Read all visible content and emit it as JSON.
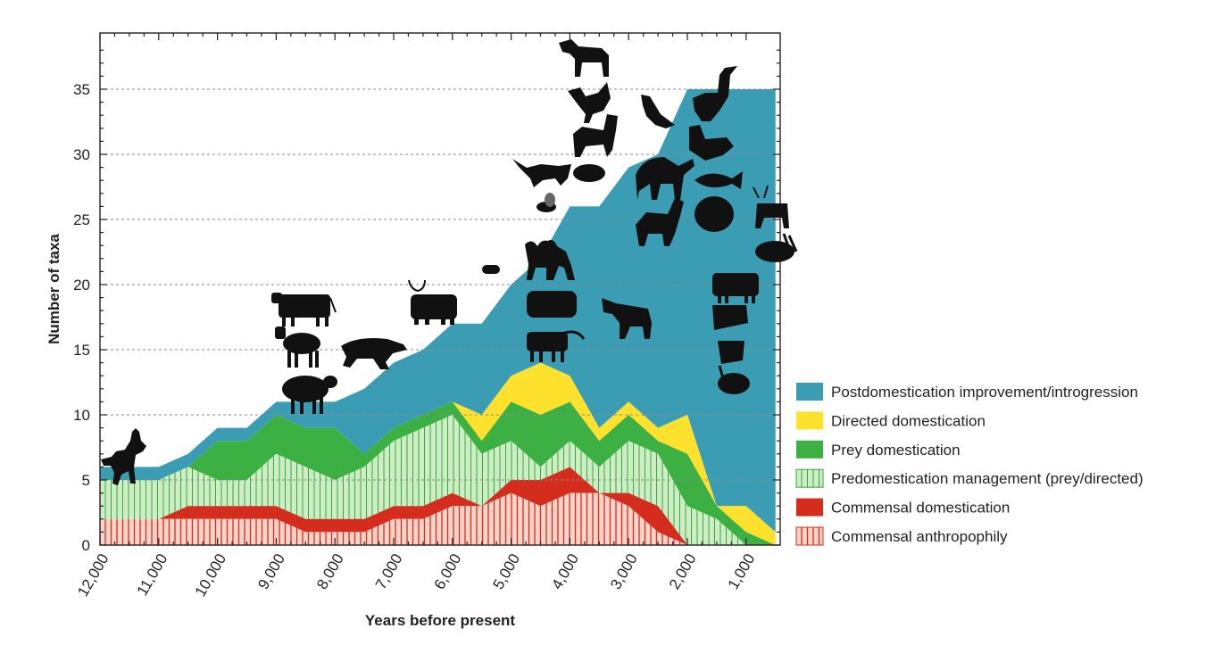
{
  "chart_data": {
    "type": "area",
    "title": "",
    "xlabel": "Years before present",
    "ylabel": "Number of taxa",
    "xlim": [
      12000,
      500
    ],
    "ylim": [
      0,
      39
    ],
    "x_ticks": [
      12000,
      11000,
      10000,
      9000,
      8000,
      7000,
      6000,
      5000,
      4000,
      3000,
      2000,
      1000
    ],
    "x_tick_labels": [
      "12,000",
      "11,000",
      "10,000",
      "9,000",
      "8,000",
      "7,000",
      "6,000",
      "5,000",
      "4,000",
      "3,000",
      "2,000",
      "1,000"
    ],
    "y_ticks": [
      0,
      5,
      10,
      15,
      20,
      25,
      30,
      35
    ],
    "y_tick_labels": [
      "0",
      "5",
      "10",
      "15",
      "20",
      "25",
      "30",
      "35"
    ],
    "grid": "horizontal dashed lines at y ticks",
    "legend_position": "bottom-right",
    "x": [
      12000,
      11500,
      11000,
      10500,
      10000,
      9500,
      9000,
      8500,
      8000,
      7500,
      7000,
      6500,
      6000,
      5500,
      5000,
      4500,
      4000,
      3500,
      3000,
      2500,
      2000,
      1500,
      1000,
      500
    ],
    "series": [
      {
        "name": "Commensal anthropophily",
        "color": "#f6c9be",
        "pattern": "vertical-stripes-red",
        "cumulative_top": [
          2,
          2,
          2,
          2,
          2,
          2,
          2,
          1,
          1,
          1,
          2,
          2,
          3,
          3,
          4,
          3,
          4,
          4,
          3,
          1,
          0,
          0,
          0,
          0
        ]
      },
      {
        "name": "Commensal domestication",
        "color": "#d42d1e",
        "cumulative_top": [
          2,
          2,
          2,
          3,
          3,
          3,
          3,
          2,
          2,
          2,
          3,
          3,
          4,
          3,
          5,
          5,
          6,
          4,
          4,
          3,
          0,
          0,
          0,
          0
        ]
      },
      {
        "name": "Predomestication management (prey/directed)",
        "color": "#c8ecbf",
        "pattern": "vertical-stripes-green",
        "cumulative_top": [
          5,
          5,
          5,
          6,
          5,
          5,
          7,
          6,
          5,
          6,
          8,
          9,
          10,
          7,
          8,
          6,
          8,
          6,
          8,
          7,
          3,
          2,
          0,
          0
        ]
      },
      {
        "name": "Prey domestication",
        "color": "#3cb043",
        "cumulative_top": [
          5,
          5,
          5,
          6,
          8,
          8,
          10,
          9,
          9,
          7,
          9,
          10,
          11,
          8,
          11,
          10,
          11,
          8,
          10,
          8,
          7,
          3,
          1,
          0
        ]
      },
      {
        "name": "Directed domestication",
        "color": "#fde12d",
        "cumulative_top": [
          5,
          5,
          5,
          6,
          8,
          8,
          10,
          9,
          9,
          7,
          9,
          10,
          11,
          10,
          13,
          14,
          13,
          9,
          11,
          9,
          10,
          3,
          3,
          1
        ]
      },
      {
        "name": "Postdomestication improvement/introgression",
        "color": "#3a9db4",
        "cumulative_top": [
          6,
          6,
          6,
          7,
          9,
          9,
          11,
          11,
          11,
          12,
          14,
          15,
          17,
          17,
          20,
          22,
          26,
          26,
          29,
          30,
          35,
          35,
          35,
          35
        ]
      }
    ],
    "animal_icons": [
      "dog-icon",
      "cattle-icon",
      "goat-icon",
      "sheep-icon",
      "pig-icon",
      "yak-icon",
      "silkworm-icon",
      "bactrian-camel-icon",
      "water-buffalo-icon",
      "ferret-icon",
      "honeybee-icon",
      "cat-icon",
      "horse-icon",
      "chicken-icon",
      "llama-icon",
      "guinea-pig-icon",
      "donkey-icon",
      "pigeon-icon",
      "dromedary-icon",
      "alpaca-icon",
      "goose-icon",
      "duck-icon",
      "carp-icon",
      "turkey-icon",
      "reindeer-icon",
      "rabbit-icon",
      "zebu-icon",
      "mithan-icon",
      "muscovy-duck-icon",
      "guineafowl-icon"
    ]
  }
}
